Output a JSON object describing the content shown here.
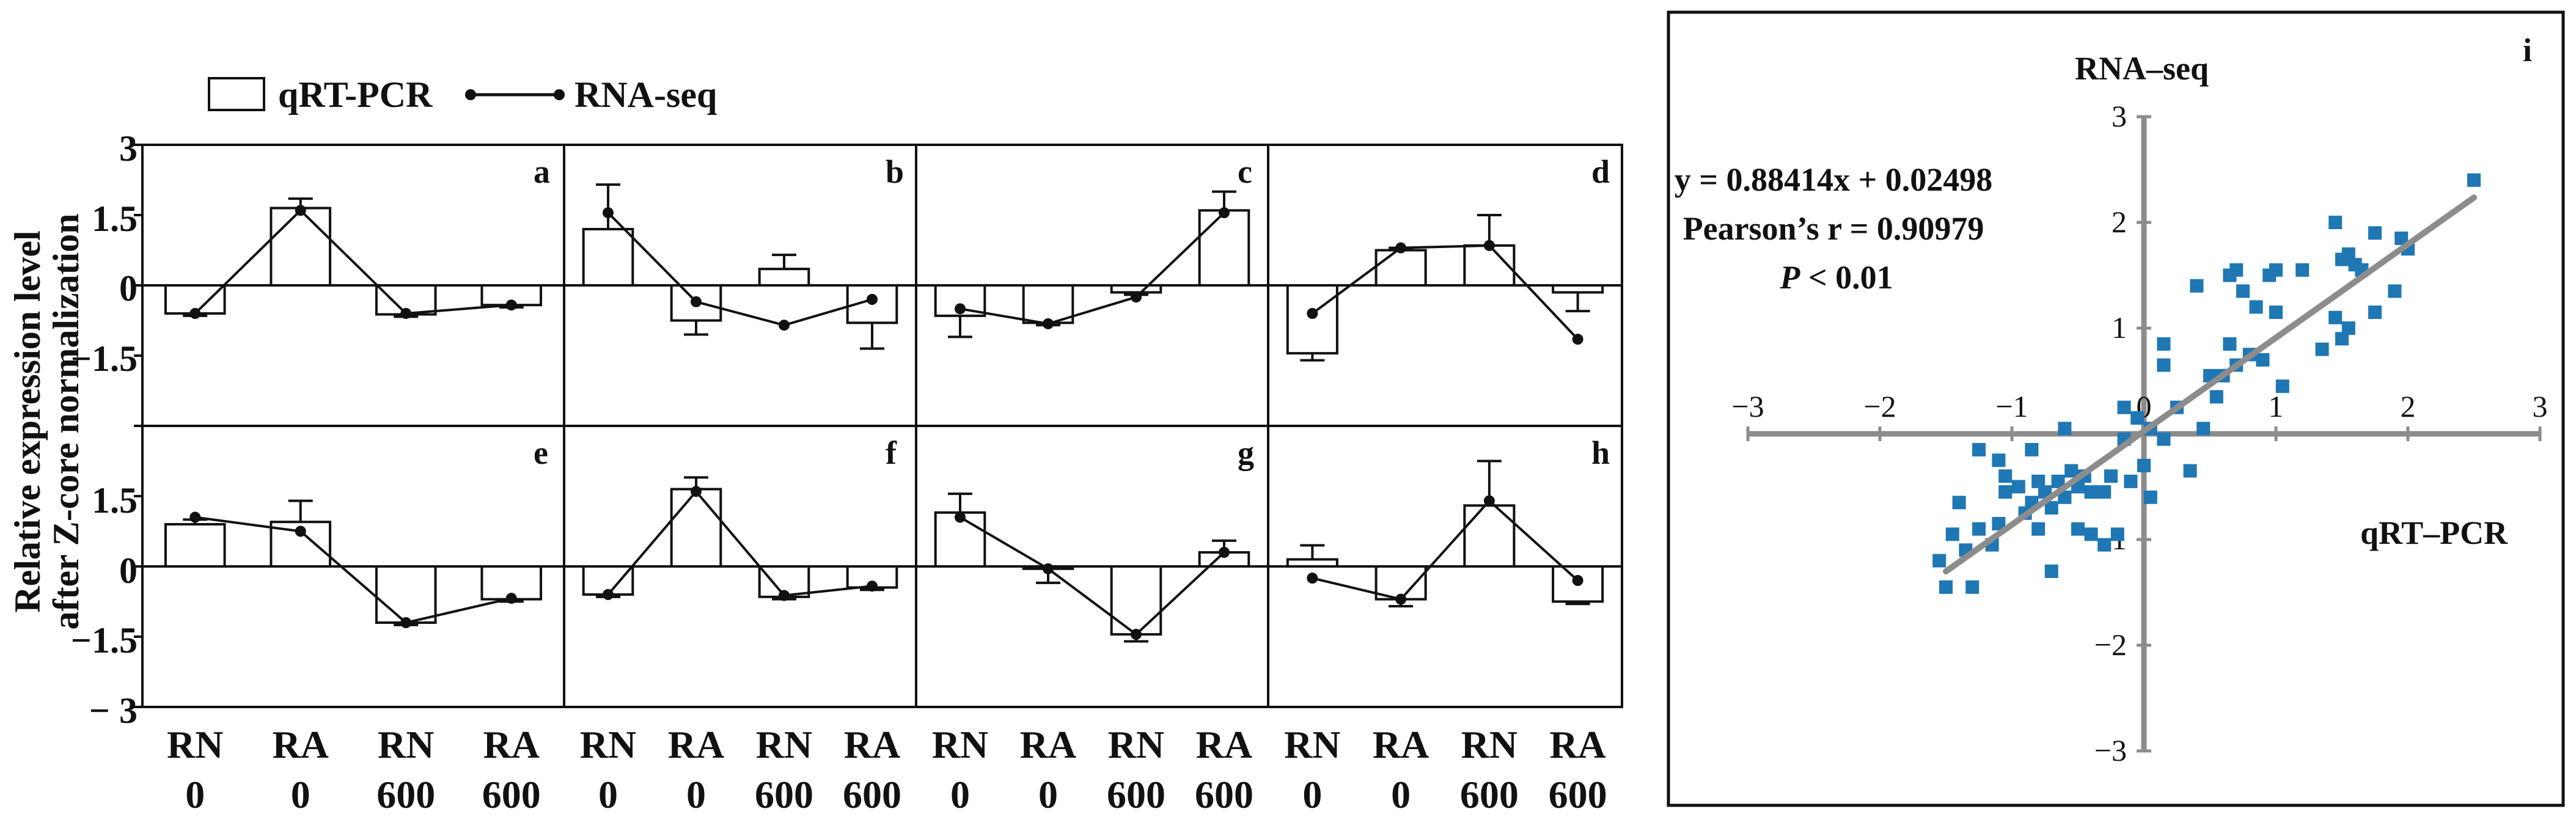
{
  "legend": {
    "bar_label": "qRT-PCR",
    "line_label": "RNA-seq"
  },
  "ylabel_lines": [
    "Relative expression level",
    "after Z-core normalization"
  ],
  "top_row_ticks": [
    "3",
    "1.5",
    "0",
    "−1.5"
  ],
  "bottom_row_ticks": [
    "1.5",
    "0",
    "−1.5",
    "− 3"
  ],
  "x_categories": [
    {
      "top": "RN",
      "bottom": "0"
    },
    {
      "top": "RA",
      "bottom": "0"
    },
    {
      "top": "RN",
      "bottom": "600"
    },
    {
      "top": "RA",
      "bottom": "600"
    }
  ],
  "scatter_text": {
    "panel_letter": "i",
    "y_title": "RNA–seq",
    "x_title": "qRT–PCR",
    "equation": "y = 0.88414x + 0.02498",
    "pearson": "Pearson’s r = 0.90979",
    "p_italic": "P",
    "p_rest": " < 0.01",
    "x_ticks": [
      "−3",
      "−2",
      "−1",
      "0",
      "1",
      "2",
      "3"
    ],
    "y_ticks": [
      "3",
      "2",
      "1",
      "−1",
      "−2",
      "−3"
    ]
  },
  "chart_data": [
    {
      "type": "bar",
      "title": "",
      "ylabel": "Relative expression level after Z-core normalization",
      "categories": [
        "RN 0",
        "RA 0",
        "RN 600",
        "RA 600"
      ],
      "ylim": [
        -3,
        3
      ],
      "yticks": [
        3,
        1.5,
        0,
        -1.5,
        -3
      ],
      "grid": false,
      "legend_position": "top-left",
      "panels": [
        {
          "id": "a",
          "qRT_PCR": [
            -0.6,
            1.65,
            -0.62,
            -0.42
          ],
          "qRT_PCR_err": [
            0.05,
            0.2,
            0.05,
            0.05
          ],
          "RNA_seq": [
            -0.6,
            1.6,
            -0.6,
            -0.42
          ]
        },
        {
          "id": "b",
          "qRT_PCR": [
            1.2,
            -0.75,
            0.35,
            -0.8
          ],
          "qRT_PCR_err": [
            0.95,
            0.3,
            0.3,
            0.55
          ],
          "RNA_seq": [
            1.55,
            -0.35,
            -0.85,
            -0.3
          ]
        },
        {
          "id": "c",
          "qRT_PCR": [
            -0.65,
            -0.8,
            -0.15,
            1.6
          ],
          "qRT_PCR_err": [
            0.45,
            0.05,
            0.05,
            0.4
          ],
          "RNA_seq": [
            -0.5,
            -0.82,
            -0.25,
            1.55
          ]
        },
        {
          "id": "d",
          "qRT_PCR": [
            -1.45,
            0.75,
            0.85,
            -0.15
          ],
          "qRT_PCR_err": [
            0.15,
            0.05,
            0.65,
            0.4
          ],
          "RNA_seq": [
            -0.6,
            0.8,
            0.85,
            -1.15
          ]
        },
        {
          "id": "e",
          "qRT_PCR": [
            0.9,
            0.95,
            -1.2,
            -0.7
          ],
          "qRT_PCR_err": [
            0.1,
            0.45,
            0.05,
            0.05
          ],
          "RNA_seq": [
            1.05,
            0.75,
            -1.2,
            -0.68
          ]
        },
        {
          "id": "f",
          "qRT_PCR": [
            -0.6,
            1.65,
            -0.65,
            -0.45
          ],
          "qRT_PCR_err": [
            0.05,
            0.25,
            0.05,
            0.05
          ],
          "RNA_seq": [
            -0.6,
            1.6,
            -0.62,
            -0.42
          ]
        },
        {
          "id": "g",
          "qRT_PCR": [
            1.15,
            -0.05,
            -1.45,
            0.3
          ],
          "qRT_PCR_err": [
            0.4,
            0.3,
            0.15,
            0.25
          ],
          "RNA_seq": [
            1.05,
            -0.05,
            -1.45,
            0.3
          ]
        },
        {
          "id": "h",
          "qRT_PCR": [
            0.15,
            -0.7,
            1.3,
            -0.75
          ],
          "qRT_PCR_err": [
            0.3,
            0.15,
            0.95,
            0.05
          ],
          "RNA_seq": [
            -0.25,
            -0.7,
            1.4,
            -0.3
          ]
        }
      ],
      "series": [
        {
          "name": "qRT-PCR",
          "kind": "bar"
        },
        {
          "name": "RNA-seq",
          "kind": "line"
        }
      ]
    },
    {
      "type": "scatter",
      "title": "",
      "xlabel": "qRT–PCR",
      "ylabel": "RNA–seq",
      "xlim": [
        -3,
        3
      ],
      "ylim": [
        -3,
        3
      ],
      "grid": false,
      "point_color": "#1f77b4",
      "fit_line_color": "#8c8c8c",
      "fit": {
        "slope": 0.88414,
        "intercept": 0.02498,
        "x_range": [
          -1.5,
          2.5
        ]
      },
      "annotations": [
        "y = 0.88414x + 0.02498",
        "Pearson’s r = 0.90979",
        "P < 0.01"
      ],
      "points": [
        [
          2.5,
          2.4
        ],
        [
          1.45,
          2.0
        ],
        [
          1.75,
          1.9
        ],
        [
          1.95,
          1.85
        ],
        [
          1.55,
          1.7
        ],
        [
          1.5,
          1.65
        ],
        [
          1.6,
          1.6
        ],
        [
          1.65,
          1.55
        ],
        [
          2.0,
          1.75
        ],
        [
          0.7,
          1.55
        ],
        [
          0.65,
          1.5
        ],
        [
          1.0,
          1.55
        ],
        [
          1.2,
          1.55
        ],
        [
          0.95,
          1.5
        ],
        [
          0.4,
          1.4
        ],
        [
          0.75,
          1.35
        ],
        [
          1.75,
          1.15
        ],
        [
          1.45,
          1.1
        ],
        [
          1.55,
          1.0
        ],
        [
          1.5,
          0.9
        ],
        [
          1.35,
          0.8
        ],
        [
          0.85,
          1.2
        ],
        [
          1.0,
          1.15
        ],
        [
          1.9,
          1.35
        ],
        [
          0.65,
          0.85
        ],
        [
          0.8,
          0.75
        ],
        [
          0.7,
          0.65
        ],
        [
          0.6,
          0.55
        ],
        [
          0.5,
          0.55
        ],
        [
          0.55,
          0.35
        ],
        [
          0.9,
          0.7
        ],
        [
          1.05,
          0.45
        ],
        [
          0.15,
          0.85
        ],
        [
          0.15,
          0.65
        ],
        [
          -0.15,
          0.25
        ],
        [
          -0.6,
          0.05
        ],
        [
          0.25,
          0.25
        ],
        [
          0.05,
          0.05
        ],
        [
          -0.05,
          0.15
        ],
        [
          0.15,
          -0.05
        ],
        [
          0.45,
          0.05
        ],
        [
          -0.15,
          -0.05
        ],
        [
          0.35,
          -0.35
        ],
        [
          -0.25,
          -0.4
        ],
        [
          0.0,
          -0.3
        ],
        [
          -0.1,
          -0.45
        ],
        [
          0.05,
          -0.6
        ],
        [
          -0.3,
          -0.55
        ],
        [
          -0.45,
          -0.4
        ],
        [
          -0.55,
          -0.35
        ],
        [
          -0.65,
          -0.45
        ],
        [
          -0.5,
          -0.5
        ],
        [
          -0.4,
          -0.55
        ],
        [
          -0.6,
          -0.6
        ],
        [
          -0.75,
          -0.55
        ],
        [
          -0.8,
          -0.45
        ],
        [
          -0.85,
          -0.65
        ],
        [
          -0.9,
          -0.75
        ],
        [
          -0.7,
          -0.7
        ],
        [
          -0.95,
          -0.5
        ],
        [
          -1.05,
          -0.55
        ],
        [
          -0.8,
          -0.9
        ],
        [
          -0.5,
          -0.9
        ],
        [
          -0.4,
          -0.95
        ],
        [
          -0.2,
          -0.95
        ],
        [
          -0.3,
          -1.05
        ],
        [
          -0.7,
          -1.3
        ],
        [
          -1.1,
          -0.25
        ],
        [
          -1.05,
          -0.4
        ],
        [
          -1.25,
          -0.15
        ],
        [
          -1.4,
          -0.65
        ],
        [
          -1.25,
          -0.9
        ],
        [
          -1.35,
          -1.1
        ],
        [
          -1.55,
          -1.2
        ],
        [
          -1.45,
          -0.95
        ],
        [
          -1.5,
          -1.45
        ],
        [
          -1.3,
          -1.45
        ],
        [
          -1.15,
          -1.05
        ],
        [
          -0.85,
          -0.15
        ],
        [
          -1.1,
          -0.85
        ]
      ]
    }
  ]
}
